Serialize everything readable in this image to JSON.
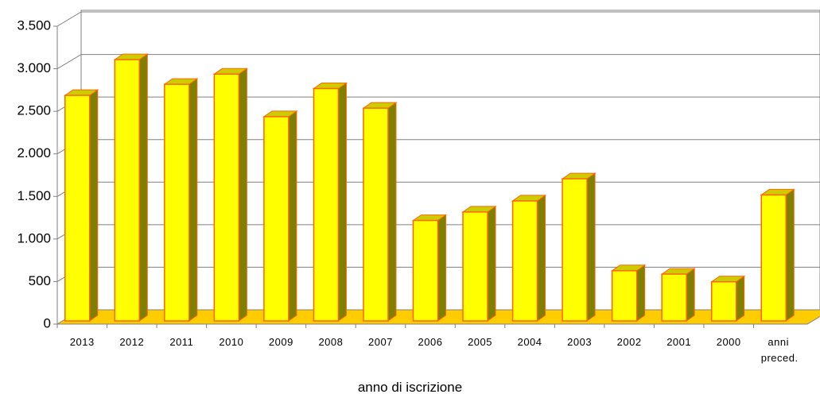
{
  "chart_data": {
    "type": "bar3d",
    "x_label": "anno di iscrizione",
    "categories": [
      "2013",
      "2012",
      "2011",
      "2010",
      "2009",
      "2008",
      "2007",
      "2006",
      "2005",
      "2004",
      "2003",
      "2002",
      "2001",
      "2000",
      "anni preced."
    ],
    "values": [
      2650,
      3070,
      2780,
      2900,
      2400,
      2730,
      2500,
      1180,
      1280,
      1410,
      1670,
      590,
      550,
      460,
      1480
    ],
    "color": "#ffff00",
    "ylim": [
      0,
      3500
    ],
    "yticks": [
      {
        "value": 0,
        "label": "0"
      },
      {
        "value": 500,
        "label": "500"
      },
      {
        "value": 1000,
        "label": "1.000"
      },
      {
        "value": 1500,
        "label": "1.500"
      },
      {
        "value": 2000,
        "label": "2.000"
      },
      {
        "value": 2500,
        "label": "2.500"
      },
      {
        "value": 3000,
        "label": "3.000"
      },
      {
        "value": 3500,
        "label": "3.500"
      }
    ],
    "grid": true
  }
}
